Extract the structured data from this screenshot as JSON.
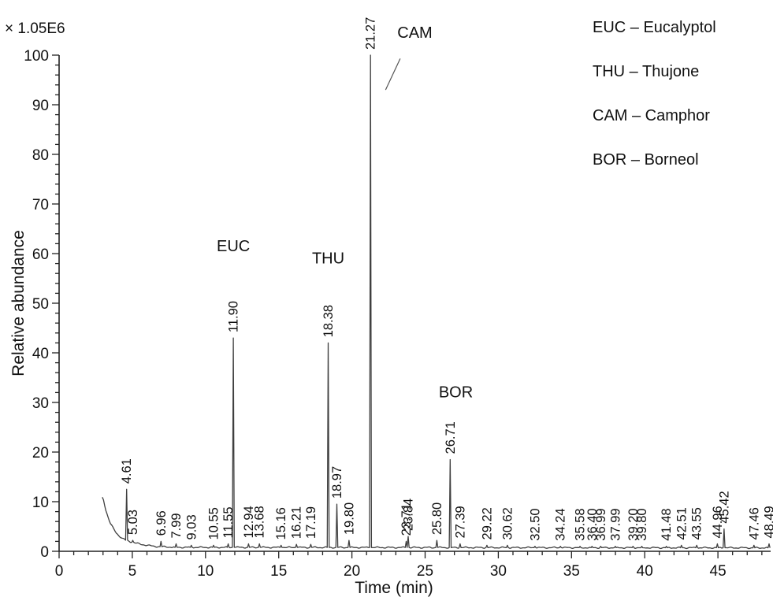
{
  "chart_data": {
    "type": "line",
    "title": "",
    "xlabel": "Time (min)",
    "ylabel": "Relative abundance",
    "scale_label": "× 1.05E6",
    "xlim": [
      0,
      48.6
    ],
    "ylim": [
      0,
      100
    ],
    "x_major_ticks": [
      0,
      5,
      10,
      15,
      20,
      25,
      30,
      35,
      40,
      45
    ],
    "x_minor_step": 1,
    "y_major_ticks": [
      0,
      10,
      20,
      30,
      40,
      50,
      60,
      70,
      80,
      90,
      100
    ],
    "y_minor_step": 2,
    "grid": false,
    "legend_position": "top-right",
    "line_color": "#3f3f3f",
    "baseline": [
      [
        3.0,
        10.8
      ],
      [
        3.2,
        8.2
      ],
      [
        3.5,
        5.6
      ],
      [
        3.9,
        3.7
      ],
      [
        4.3,
        2.6
      ],
      [
        4.9,
        1.9
      ],
      [
        5.6,
        1.4
      ],
      [
        6.5,
        1.0
      ],
      [
        8.0,
        0.8
      ],
      [
        48.6,
        0.7
      ]
    ],
    "peaks": [
      {
        "rt": 4.61,
        "label": "4.61",
        "height": 12.5
      },
      {
        "rt": 5.03,
        "label": "5.03",
        "height": 2.2
      },
      {
        "rt": 6.96,
        "label": "6.96",
        "height": 2.0
      },
      {
        "rt": 7.99,
        "label": "7.99",
        "height": 1.5
      },
      {
        "rt": 9.03,
        "label": "9.03",
        "height": 1.2
      },
      {
        "rt": 10.55,
        "label": "10.55",
        "height": 1.2
      },
      {
        "rt": 11.55,
        "label": "11.55",
        "height": 1.5
      },
      {
        "rt": 11.9,
        "label": "11.90",
        "height": 43,
        "compound": "EUC"
      },
      {
        "rt": 12.94,
        "label": "12.94",
        "height": 1.5
      },
      {
        "rt": 13.68,
        "label": "13.68",
        "height": 1.5
      },
      {
        "rt": 15.16,
        "label": "15.16",
        "height": 1.2
      },
      {
        "rt": 16.21,
        "label": "16.21",
        "height": 1.4
      },
      {
        "rt": 17.19,
        "label": "17.19",
        "height": 1.4
      },
      {
        "rt": 18.38,
        "label": "18.38",
        "height": 42,
        "compound": "THU"
      },
      {
        "rt": 18.97,
        "label": "18.97",
        "height": 9.5
      },
      {
        "rt": 19.8,
        "label": "19.80",
        "height": 2.2
      },
      {
        "rt": 21.27,
        "label": "21.27",
        "height": 100,
        "compound": "CAM"
      },
      {
        "rt": 23.71,
        "label": "23.71",
        "height": 2.0
      },
      {
        "rt": 23.84,
        "label": "23.84",
        "height": 3.0
      },
      {
        "rt": 25.8,
        "label": "25.80",
        "height": 2.2
      },
      {
        "rt": 26.71,
        "label": "26.71",
        "height": 18.5,
        "compound": "BOR"
      },
      {
        "rt": 27.39,
        "label": "27.39",
        "height": 1.5
      },
      {
        "rt": 29.22,
        "label": "29.22",
        "height": 1.2
      },
      {
        "rt": 30.62,
        "label": "30.62",
        "height": 1.2
      },
      {
        "rt": 32.5,
        "label": "32.50",
        "height": 1.0
      },
      {
        "rt": 34.24,
        "label": "34.24",
        "height": 1.0
      },
      {
        "rt": 35.58,
        "label": "35.58",
        "height": 1.0
      },
      {
        "rt": 36.4,
        "label": "36.40",
        "height": 1.0
      },
      {
        "rt": 36.99,
        "label": "36.99",
        "height": 1.0
      },
      {
        "rt": 37.99,
        "label": "37.99",
        "height": 1.0
      },
      {
        "rt": 39.2,
        "label": "39.20",
        "height": 1.0
      },
      {
        "rt": 39.8,
        "label": "39.80",
        "height": 1.0
      },
      {
        "rt": 41.48,
        "label": "41.48",
        "height": 1.0
      },
      {
        "rt": 42.51,
        "label": "42.51",
        "height": 1.2
      },
      {
        "rt": 43.55,
        "label": "43.55",
        "height": 1.2
      },
      {
        "rt": 44.96,
        "label": "44.96",
        "height": 1.5
      },
      {
        "rt": 45.42,
        "label": "45.42",
        "height": 4.5
      },
      {
        "rt": 47.46,
        "label": "47.46",
        "height": 1.2
      },
      {
        "rt": 48.49,
        "label": "48.49",
        "height": 1.5
      }
    ],
    "annotations": [
      {
        "text": "EUC",
        "t": 11.9,
        "v": 60.5
      },
      {
        "text": "THU",
        "t": 18.38,
        "v": 58
      },
      {
        "text": "CAM",
        "t": 24.3,
        "v": 103.5,
        "leader": [
          [
            22.3,
            93
          ],
          [
            23.3,
            99.3
          ]
        ]
      },
      {
        "text": "BOR",
        "t": 27.1,
        "v": 31
      }
    ],
    "legend": [
      "EUC – Eucalyptol",
      "THU – Thujone",
      "CAM – Camphor",
      "BOR – Borneol"
    ]
  }
}
